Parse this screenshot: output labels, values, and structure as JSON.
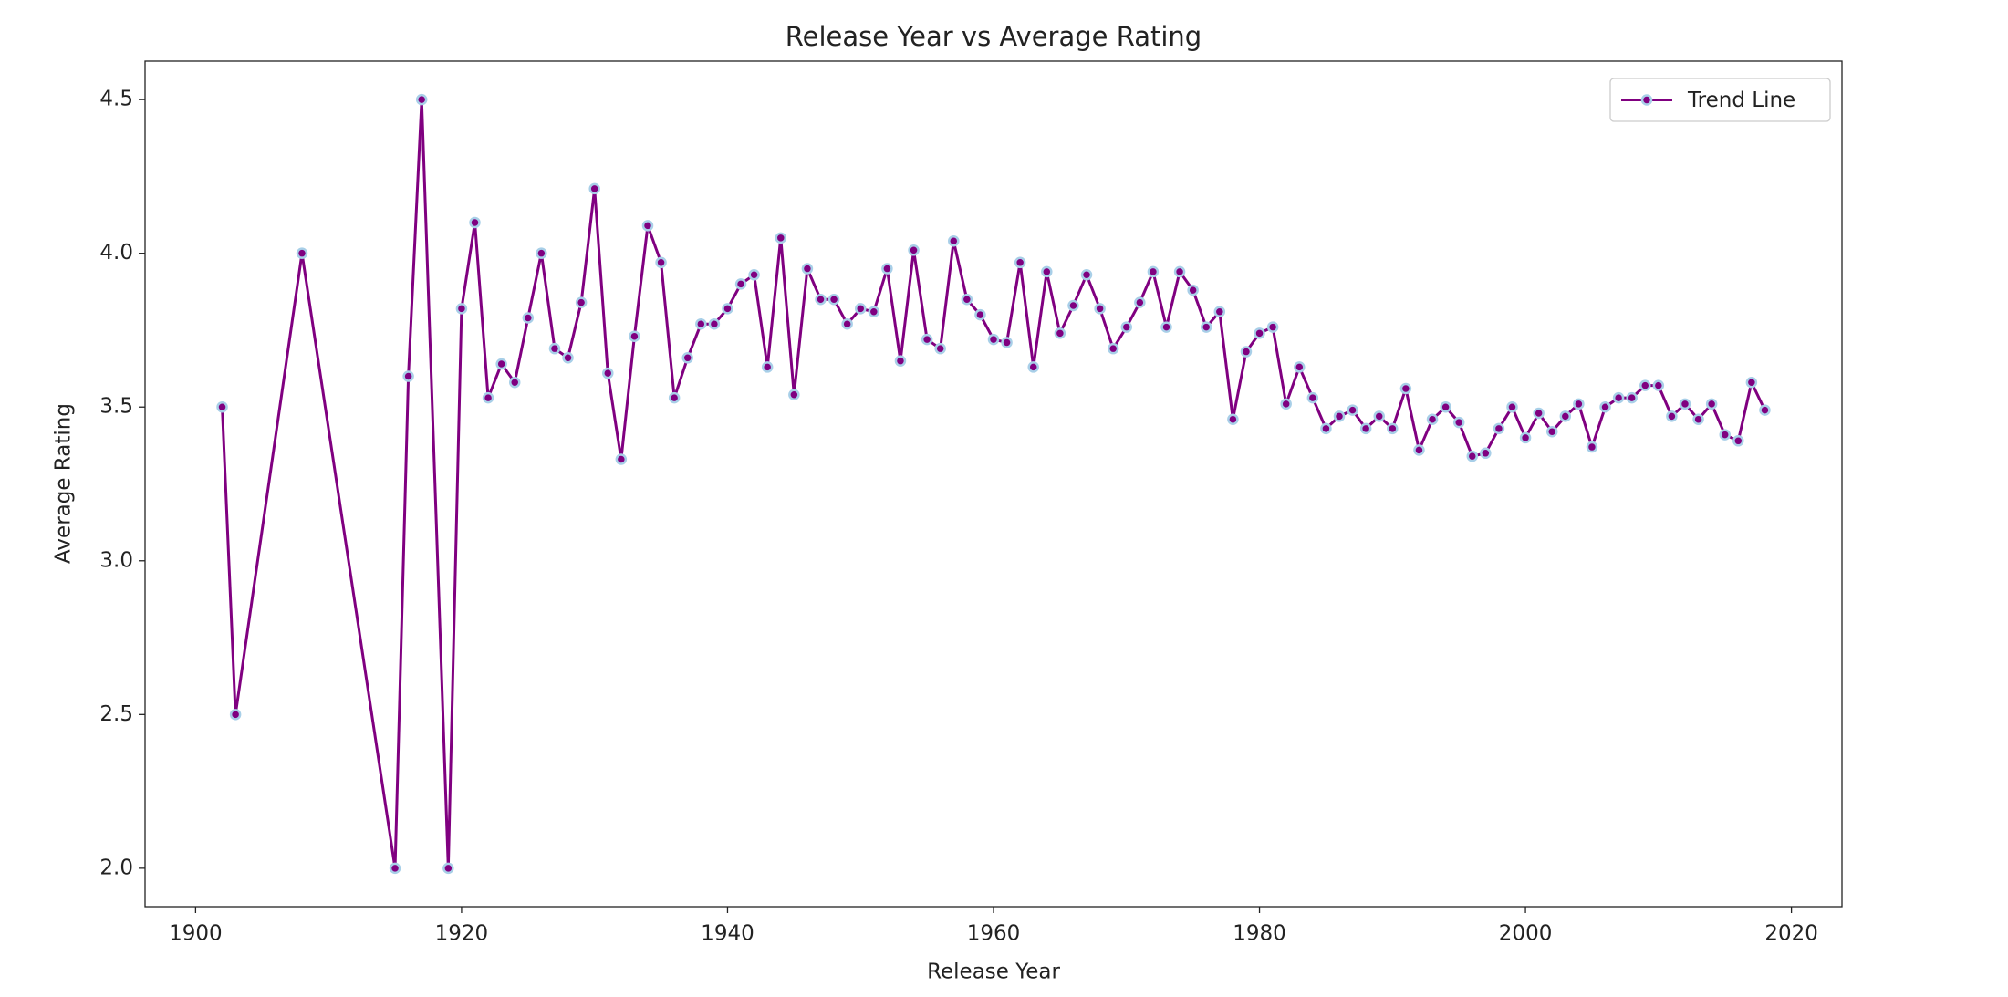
{
  "chart_data": {
    "type": "line",
    "title": "Release Year vs Average Rating",
    "x_label": "Release Year",
    "y_label": "Average Rating",
    "x": [
      1902,
      1903,
      1908,
      1915,
      1916,
      1917,
      1919,
      1920,
      1921,
      1922,
      1923,
      1924,
      1925,
      1926,
      1927,
      1928,
      1929,
      1930,
      1931,
      1932,
      1933,
      1934,
      1935,
      1936,
      1937,
      1938,
      1939,
      1940,
      1941,
      1942,
      1943,
      1944,
      1945,
      1946,
      1947,
      1948,
      1949,
      1950,
      1951,
      1952,
      1953,
      1954,
      1955,
      1956,
      1957,
      1958,
      1959,
      1960,
      1961,
      1962,
      1963,
      1964,
      1965,
      1966,
      1967,
      1968,
      1969,
      1970,
      1971,
      1972,
      1973,
      1974,
      1975,
      1976,
      1977,
      1978,
      1979,
      1980,
      1981,
      1982,
      1983,
      1984,
      1985,
      1986,
      1987,
      1988,
      1989,
      1990,
      1991,
      1992,
      1993,
      1994,
      1995,
      1996,
      1997,
      1998,
      1999,
      2000,
      2001,
      2002,
      2003,
      2004,
      2005,
      2006,
      2007,
      2008,
      2009,
      2010,
      2011,
      2012,
      2013,
      2014,
      2015,
      2016,
      2017,
      2018
    ],
    "series": [
      {
        "name": "Trend Line",
        "color": "#800080",
        "marker_edge_color": "#a8cfe8",
        "values": [
          3.5,
          2.5,
          4.0,
          2.0,
          3.6,
          4.5,
          2.0,
          3.82,
          4.1,
          3.53,
          3.64,
          3.58,
          3.79,
          4.0,
          3.69,
          3.66,
          3.84,
          4.21,
          3.61,
          3.33,
          3.73,
          4.09,
          3.97,
          3.53,
          3.66,
          3.77,
          3.77,
          3.82,
          3.9,
          3.93,
          3.63,
          4.05,
          3.54,
          3.95,
          3.85,
          3.85,
          3.77,
          3.82,
          3.81,
          3.95,
          3.65,
          4.01,
          3.72,
          3.69,
          4.04,
          3.85,
          3.8,
          3.72,
          3.71,
          3.97,
          3.63,
          3.94,
          3.74,
          3.83,
          3.93,
          3.82,
          3.69,
          3.76,
          3.84,
          3.94,
          3.76,
          3.94,
          3.88,
          3.76,
          3.81,
          3.46,
          3.68,
          3.74,
          3.76,
          3.51,
          3.63,
          3.53,
          3.43,
          3.47,
          3.49,
          3.43,
          3.47,
          3.43,
          3.56,
          3.36,
          3.46,
          3.5,
          3.45,
          3.34,
          3.35,
          3.43,
          3.5,
          3.4,
          3.48,
          3.42,
          3.47,
          3.51,
          3.37,
          3.5,
          3.53,
          3.53,
          3.57,
          3.57,
          3.47,
          3.51,
          3.46,
          3.51,
          3.41,
          3.39,
          3.58,
          3.49
        ]
      }
    ],
    "xlim": [
      1896.2,
      2023.8
    ],
    "xticks": [
      1900,
      1920,
      1940,
      1960,
      1980,
      2000,
      2020
    ],
    "ylim": [
      1.875,
      4.625
    ],
    "yticks": [
      {
        "value": 2,
        "label": "2.0"
      },
      2.5,
      {
        "value": 3,
        "label": "3.0"
      },
      3.5,
      {
        "value": 4,
        "label": "4.0"
      },
      4.5
    ],
    "grid": false,
    "legend": "upper right"
  }
}
